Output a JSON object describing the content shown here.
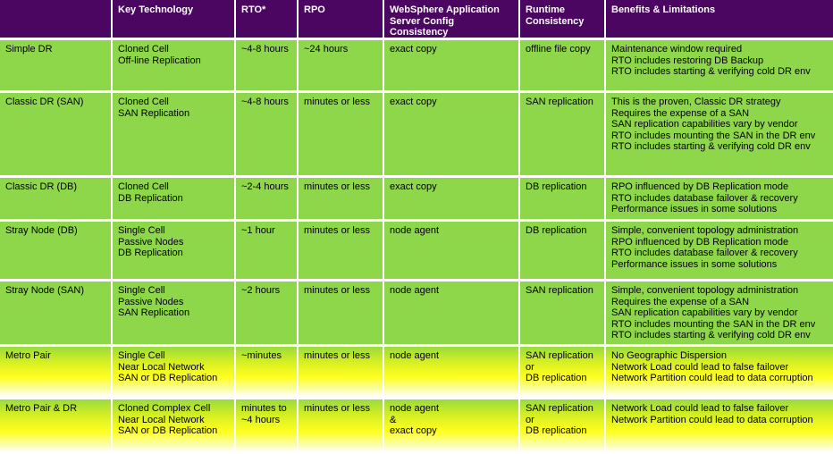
{
  "headers": [
    "",
    "Key Technology",
    "RTO*",
    "RPO",
    "WebSphere Application\nServer Config Consistency",
    "Runtime\nConsistency",
    "Benefits & Limitations"
  ],
  "rows": [
    {
      "style": "green",
      "cells": [
        "Simple DR",
        "Cloned Cell\nOff-line Replication",
        "~4-8 hours",
        "~24 hours",
        "exact copy",
        "offline file copy",
        "Maintenance window required\nRTO includes restoring DB Backup\nRTO includes starting & verifying cold DR env"
      ]
    },
    {
      "style": "green",
      "cells": [
        "Classic DR  (SAN)",
        "Cloned Cell\nSAN Replication",
        "~4-8 hours",
        "minutes or less",
        "exact copy",
        "SAN replication",
        "This is the proven, Classic DR strategy\nRequires the expense of a SAN\nSAN replication capabilities vary by vendor\nRTO includes mounting the SAN in the DR env\nRTO includes starting & verifying cold DR env"
      ]
    },
    {
      "style": "green",
      "cells": [
        "Classic DR (DB)",
        "Cloned Cell\nDB Replication",
        "~2-4 hours",
        "minutes or less",
        "exact copy",
        "DB replication",
        "RPO influenced by DB Replication mode\nRTO includes database failover & recovery\nPerformance issues in some solutions"
      ]
    },
    {
      "style": "green",
      "cells": [
        "Stray Node (DB)",
        "Single Cell\nPassive Nodes\nDB Replication",
        "~1 hour",
        "minutes or less",
        "node agent",
        "DB replication",
        "Simple, convenient topology administration\nRPO influenced by DB Replication mode\nRTO includes database failover & recovery\nPerformance issues in some solutions"
      ]
    },
    {
      "style": "green",
      "cells": [
        "Stray Node (SAN)",
        "Single Cell\nPassive Nodes\nSAN Replication",
        "~2 hours",
        "minutes or less",
        "node agent",
        "SAN replication",
        "Simple, convenient topology administration\nRequires the expense of a SAN\nSAN replication capabilities vary by vendor\nRTO includes mounting the SAN in the DR env\nRTO includes starting & verifying cold DR env"
      ]
    },
    {
      "style": "yellow",
      "cells": [
        "Metro Pair",
        "Single Cell\nNear Local Network\nSAN or DB Replication",
        "~minutes",
        "minutes or less",
        "node agent",
        "SAN replication\nor\nDB replication",
        "No Geographic Dispersion\nNetwork Load could lead to false failover\nNetwork Partition could lead to data corruption"
      ]
    },
    {
      "style": "yellow",
      "cells": [
        "Metro Pair & DR",
        "Cloned Complex Cell\nNear Local Network\nSAN or DB Replication",
        "minutes to\n~4 hours",
        "minutes or less",
        "node agent\n&\nexact copy",
        "SAN replication\nor\nDB replication",
        "Network Load could lead to false failover\nNetwork Partition could lead to data corruption"
      ]
    }
  ]
}
